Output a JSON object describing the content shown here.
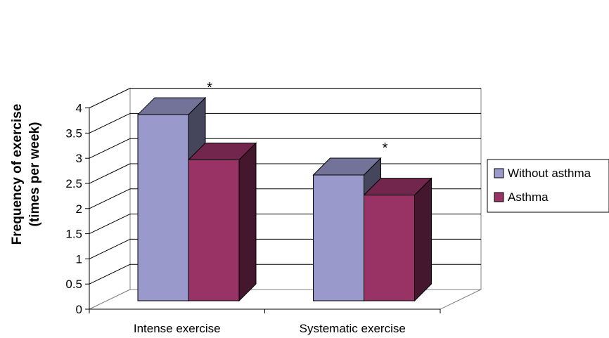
{
  "chart_data": {
    "type": "bar",
    "title": "",
    "xlabel": "",
    "ylabel_line1": "Frequency of exercise",
    "ylabel_line2": "(times per week)",
    "categories": [
      "Intense exercise",
      "Systematic exercise"
    ],
    "series": [
      {
        "name": "Without asthma",
        "values": [
          3.7,
          2.5
        ],
        "color": "#9999cc"
      },
      {
        "name": "Asthma",
        "values": [
          2.8,
          2.1
        ],
        "color": "#993366"
      }
    ],
    "annotations": [
      {
        "category": "Intense exercise",
        "text": "*"
      },
      {
        "category": "Systematic exercise",
        "text": "*"
      }
    ],
    "ylim": [
      0,
      4
    ],
    "yticks": [
      "0",
      "0.5",
      "1",
      "1.5",
      "2",
      "2.5",
      "3",
      "3.5",
      "4"
    ],
    "grid": true,
    "three_d": true,
    "legend_position": "right"
  }
}
